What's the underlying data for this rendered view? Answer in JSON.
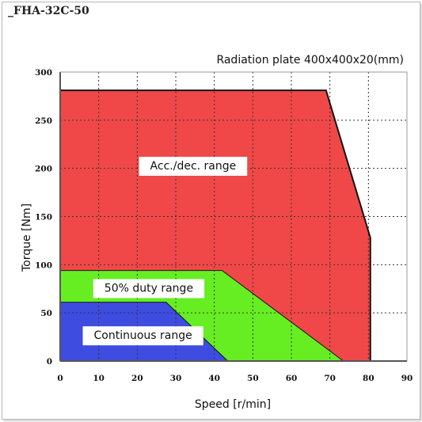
{
  "figure_title": "_FHA-32C-50",
  "colors": {
    "acc_dec": "#f04848",
    "duty50": "#66ee22",
    "continuous": "#3f4ce0",
    "outline": "#111111",
    "grid": "#333333",
    "label_box": "#ffffff"
  },
  "chart_data": {
    "type": "area",
    "title": "Radiation plate 400x400x20(mm)",
    "xlabel": "Speed [r/min]",
    "ylabel": "Torque [Nm]",
    "xlim": [
      0,
      90
    ],
    "ylim": [
      0,
      300
    ],
    "xticks": [
      0,
      10,
      20,
      30,
      40,
      50,
      60,
      70,
      80,
      90
    ],
    "yticks": [
      0,
      50,
      100,
      150,
      200,
      250,
      300
    ],
    "grid": true,
    "regions": [
      {
        "name": "Acc./dec. range",
        "color_key": "acc_dec",
        "points": [
          [
            0,
            0
          ],
          [
            0,
            281
          ],
          [
            69,
            281
          ],
          [
            80.5,
            128
          ],
          [
            80.5,
            0
          ]
        ],
        "label_anchor": [
          34.5,
          203
        ]
      },
      {
        "name": "50% duty range",
        "color_key": "duty50",
        "points": [
          [
            0,
            0
          ],
          [
            0,
            94
          ],
          [
            42,
            94
          ],
          [
            73.5,
            0
          ]
        ],
        "label_anchor": [
          23,
          76
        ]
      },
      {
        "name": "Continuous range",
        "color_key": "continuous",
        "points": [
          [
            0,
            0
          ],
          [
            0,
            61
          ],
          [
            27.5,
            61
          ],
          [
            43.5,
            0
          ]
        ],
        "label_anchor": [
          21.5,
          27
        ]
      }
    ]
  }
}
